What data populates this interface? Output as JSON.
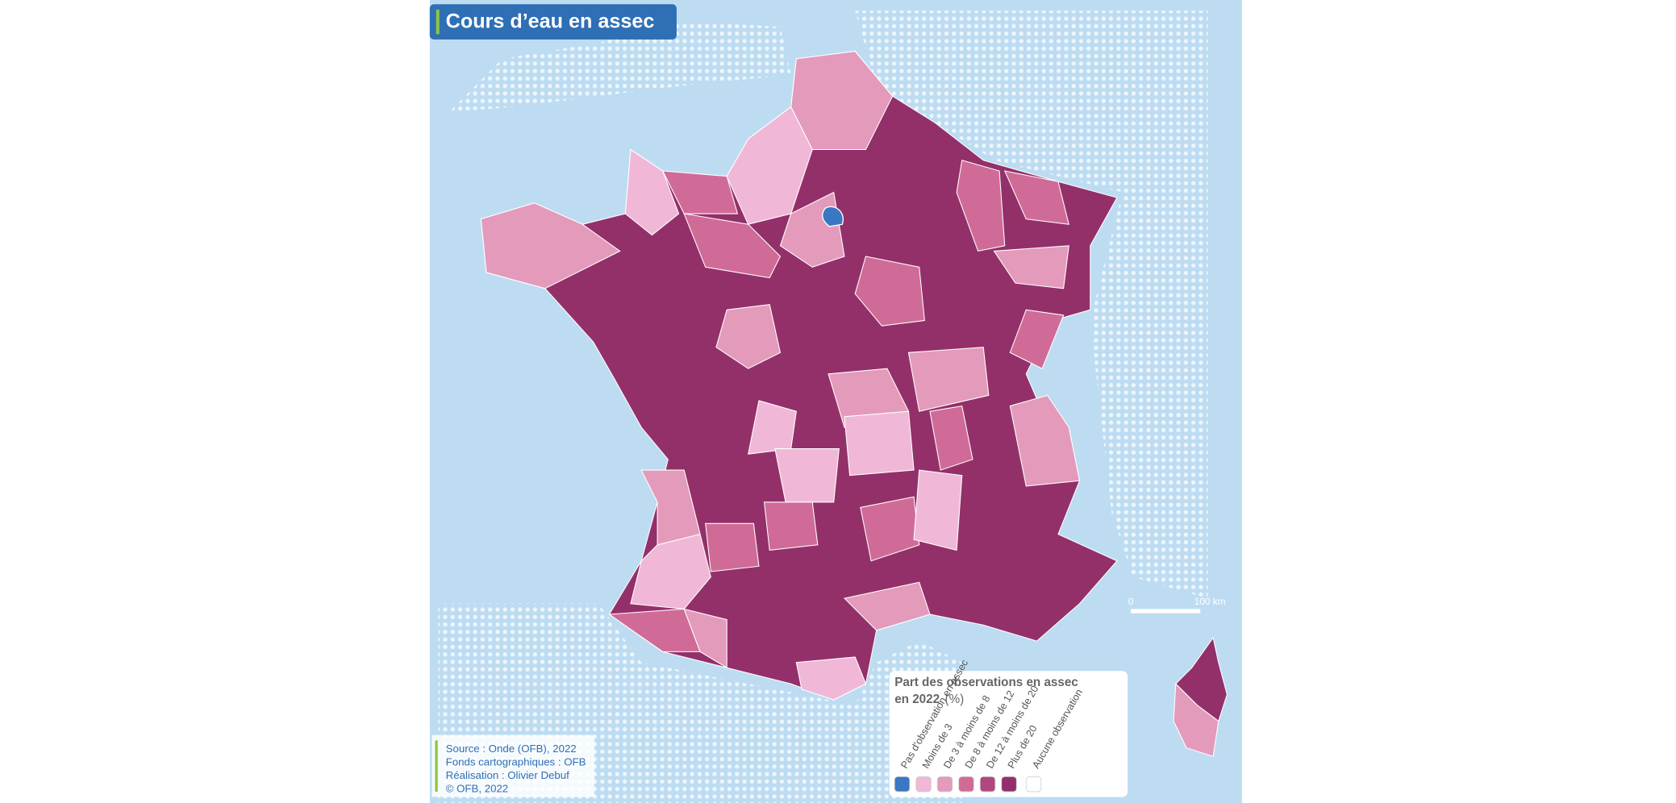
{
  "title": "Cours d’eau en assec",
  "legend": {
    "title": "Part des observations en assec en 2022",
    "unit": "(%)",
    "items": [
      {
        "label": "Pas d'observation en assec",
        "color": "#3a78c4"
      },
      {
        "label": "Moins de 3",
        "color": "#f0b8d6"
      },
      {
        "label": "De 3 à moins de 8",
        "color": "#e49abb"
      },
      {
        "label": "De 8 à moins de 12",
        "color": "#d06b98"
      },
      {
        "label": "De 12 à moins de 20",
        "color": "#b04880"
      },
      {
        "label": "Plus de 20",
        "color": "#93306a"
      },
      {
        "label": "Aucune observation",
        "color": "#ffffff"
      }
    ]
  },
  "scale": {
    "start": "0",
    "end": "100 km"
  },
  "credits": [
    "Source : Onde (OFB), 2022",
    "Fonds cartographiques : OFB",
    "Réalisation : Olivier Debuf",
    "© OFB, 2022"
  ]
}
